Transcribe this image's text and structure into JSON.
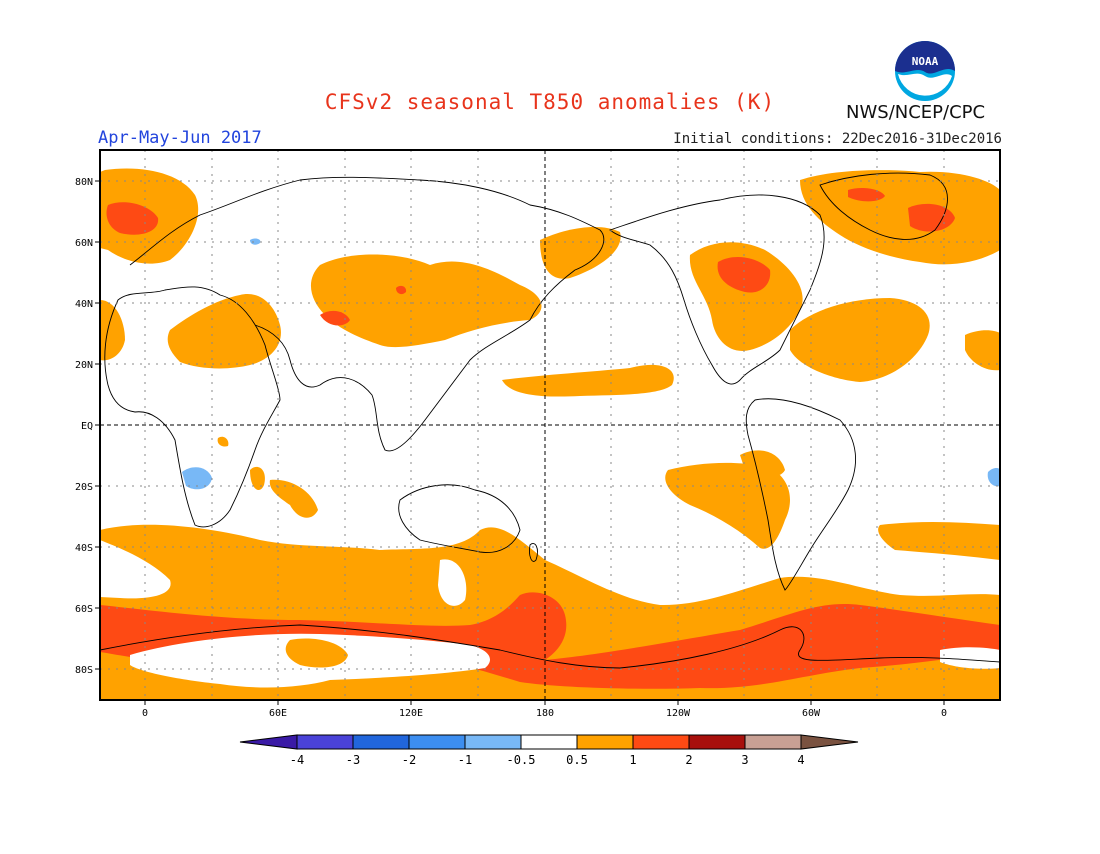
{
  "header": {
    "title": "CFSv2 seasonal T850 anomalies (K)",
    "period": "Apr-May-Jun 2017",
    "initial_conditions": "Initial conditions: 22Dec2016-31Dec2016",
    "agency": "NWS/NCEP/CPC",
    "logo_text": "NOAA"
  },
  "map": {
    "lat_labels": [
      "80N",
      "60N",
      "40N",
      "20N",
      "EQ",
      "20S",
      "40S",
      "60S",
      "80S"
    ],
    "lon_labels": [
      "0",
      "60E",
      "120E",
      "180",
      "120W",
      "60W",
      "0"
    ],
    "colors": {
      "anom_05_1": "#ffa200",
      "anom_1_2": "#fe4a14",
      "anom_neg_05_1": "#78b8f6",
      "coast": "#000000",
      "grid": "#888888"
    }
  },
  "colorbar": {
    "labels": [
      "-4",
      "-3",
      "-2",
      "-1",
      "-0.5",
      "0.5",
      "1",
      "2",
      "3",
      "4"
    ],
    "colors": [
      "#3a1aa6",
      "#4a42d8",
      "#2166dc",
      "#3c8ef0",
      "#78b8f6",
      "#ffffff",
      "#ffa200",
      "#fe4a14",
      "#a8100c",
      "#c8a094",
      "#7a5240"
    ]
  }
}
